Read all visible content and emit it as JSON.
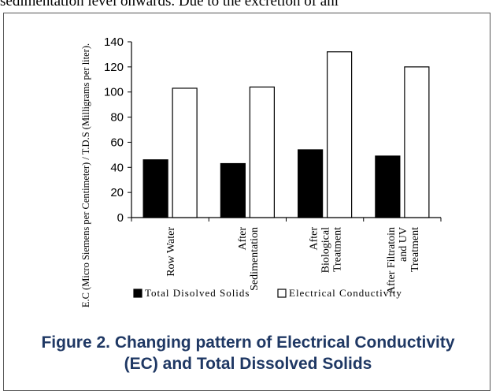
{
  "page": {
    "top_text": "sedimentation level onwards. Due to the excretion of ani",
    "caption_line1": "Figure 2. Changing pattern of Electrical Conductivity",
    "caption_line2": "(EC) and Total Dissolved Solids"
  },
  "chart_data": {
    "type": "bar",
    "categories": [
      [
        "Row Water"
      ],
      [
        "After",
        "Sedimentation"
      ],
      [
        "After",
        "Biological",
        "Treatment"
      ],
      [
        "After Filtratoin",
        "and UV",
        "Treatment"
      ]
    ],
    "series": [
      {
        "name": "Total Disolved Solids",
        "values": [
          46,
          43,
          54,
          49
        ],
        "color": "#000000"
      },
      {
        "name": "Electrical Conductivity",
        "values": [
          103,
          104,
          132,
          120
        ],
        "color": "#ffffff"
      }
    ],
    "ylabel": "E.C (Micro Siemens per Centimeter) / T.D.S (Milligrams per liter).",
    "ylim": [
      0,
      140
    ],
    "yticks": [
      "0",
      "20",
      "40",
      "60",
      "80",
      "100",
      "120",
      "140"
    ],
    "legend_position": "bottom",
    "grid": false
  }
}
